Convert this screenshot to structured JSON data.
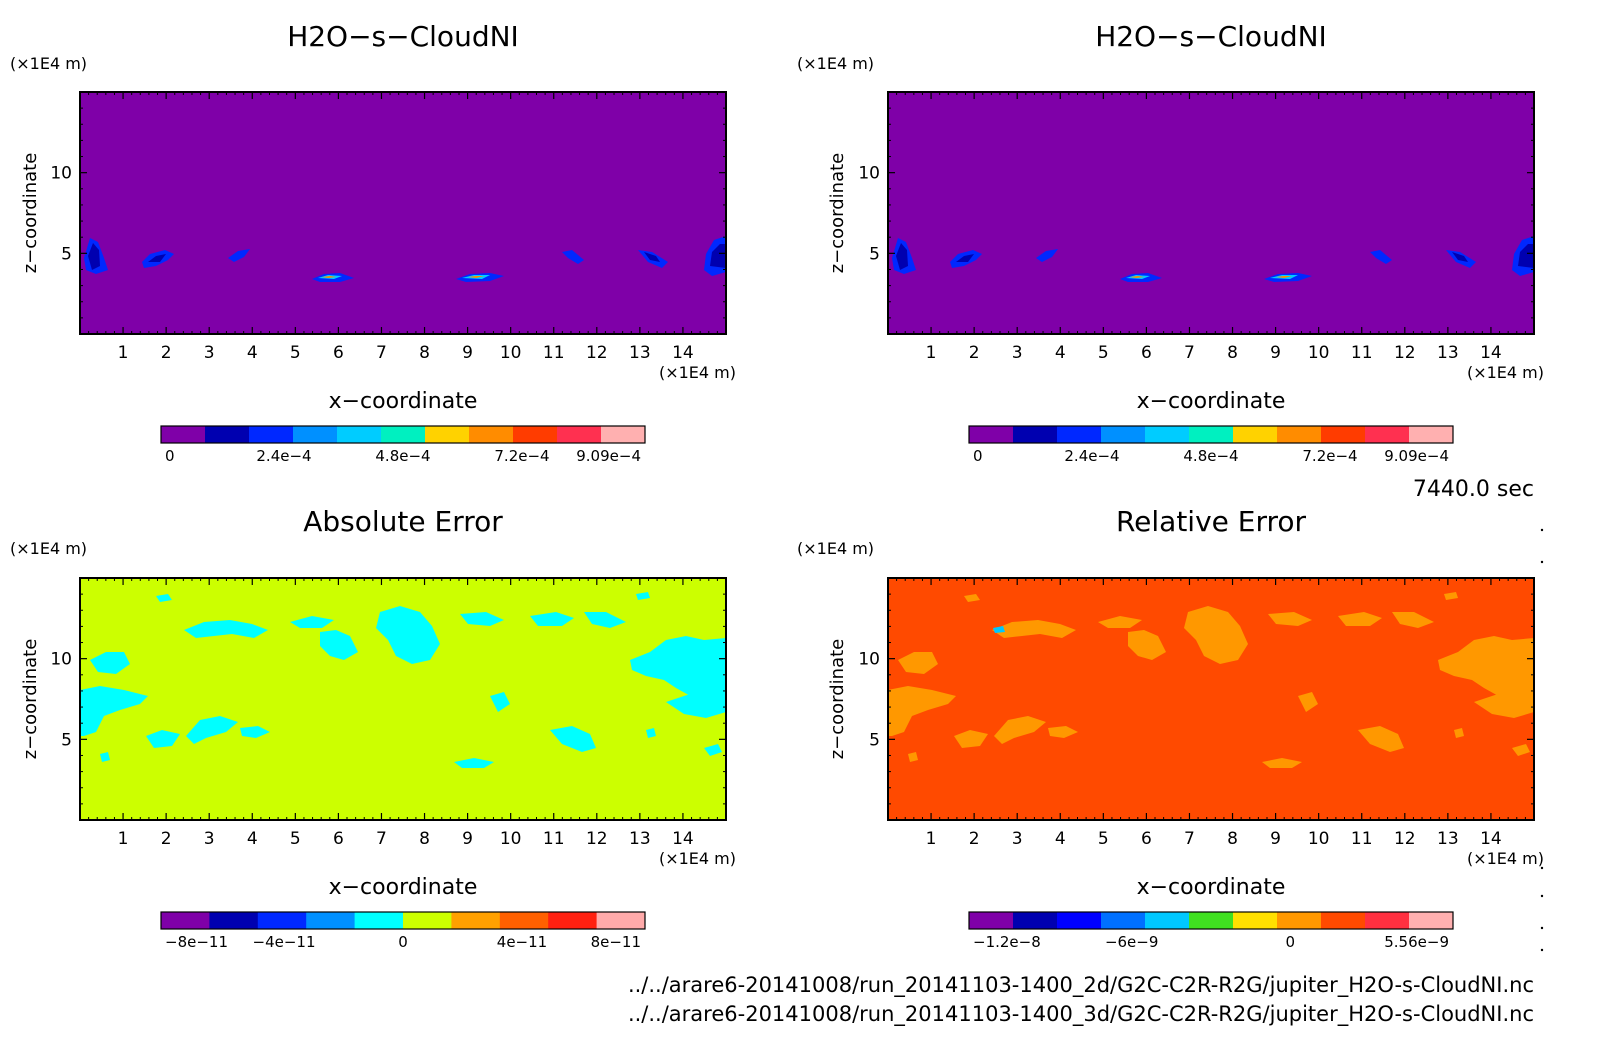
{
  "time_label": "7440.0 sec",
  "files": [
    "../../arare6-20141008/run_20141103-1400_2d/G2C-C2R-R2G/jupiter_H2O-s-CloudNI.nc",
    "../../arare6-20141008/run_20141103-1400_3d/G2C-C2R-R2G/jupiter_H2O-s-CloudNI.nc"
  ],
  "colors": {
    "cloud_bg": "#7f00a8",
    "abs_bg": "#ccff00",
    "abs_patch": "#00ffff",
    "rel_bg": "#ff4a00",
    "rel_patch": "#ff9800"
  },
  "chart_data": [
    {
      "type": "heatmap",
      "title": "H2O−s−CloudNI",
      "xlabel": "x−coordinate",
      "ylabel": "z−coordinate",
      "x_unit": "(×1E4 m)",
      "y_unit": "(×1E4 m)",
      "xticks": [
        "1",
        "2",
        "3",
        "4",
        "5",
        "6",
        "7",
        "8",
        "9",
        "10",
        "11",
        "12",
        "13",
        "14"
      ],
      "yticks": [
        "5",
        "10"
      ],
      "xlim": [
        0,
        15
      ],
      "ylim": [
        0,
        15
      ],
      "colorbar": {
        "labels": [
          "0",
          "2.4e−4",
          "4.8e−4",
          "7.2e−4",
          "9.09e−4"
        ],
        "colors": [
          "#7f00a8",
          "#0000b0",
          "#0028ff",
          "#0090ff",
          "#00ccff",
          "#00f0c0",
          "#ffd200",
          "#ff8c00",
          "#ff3c00",
          "#ff3050",
          "#ffb0b0"
        ]
      }
    },
    {
      "type": "heatmap",
      "title": "H2O−s−CloudNI",
      "xlabel": "x−coordinate",
      "ylabel": "z−coordinate",
      "x_unit": "(×1E4 m)",
      "y_unit": "(×1E4 m)",
      "xticks": [
        "1",
        "2",
        "3",
        "4",
        "5",
        "6",
        "7",
        "8",
        "9",
        "10",
        "11",
        "12",
        "13",
        "14"
      ],
      "yticks": [
        "5",
        "10"
      ],
      "xlim": [
        0,
        15
      ],
      "ylim": [
        0,
        15
      ],
      "colorbar": {
        "labels": [
          "0",
          "2.4e−4",
          "4.8e−4",
          "7.2e−4",
          "9.09e−4"
        ],
        "colors": [
          "#7f00a8",
          "#0000b0",
          "#0028ff",
          "#0090ff",
          "#00ccff",
          "#00f0c0",
          "#ffd200",
          "#ff8c00",
          "#ff3c00",
          "#ff3050",
          "#ffb0b0"
        ]
      }
    },
    {
      "type": "heatmap",
      "title": "Absolute Error",
      "xlabel": "x−coordinate",
      "ylabel": "z−coordinate",
      "x_unit": "(×1E4 m)",
      "y_unit": "(×1E4 m)",
      "xticks": [
        "1",
        "2",
        "3",
        "4",
        "5",
        "6",
        "7",
        "8",
        "9",
        "10",
        "11",
        "12",
        "13",
        "14"
      ],
      "yticks": [
        "5",
        "10"
      ],
      "xlim": [
        0,
        15
      ],
      "ylim": [
        0,
        15
      ],
      "colorbar": {
        "labels": [
          "−8e−11",
          "−4e−11",
          "0",
          "4e−11",
          "8e−11"
        ],
        "colors": [
          "#7f00a8",
          "#0000b0",
          "#0028ff",
          "#0090ff",
          "#00ffff",
          "#ccff00",
          "#ffa000",
          "#ff6000",
          "#ff2010",
          "#ffaaaa"
        ]
      }
    },
    {
      "type": "heatmap",
      "title": "Relative Error",
      "xlabel": "x−coordinate",
      "ylabel": "z−coordinate",
      "x_unit": "(×1E4 m)",
      "y_unit": "(×1E4 m)",
      "xticks": [
        "1",
        "2",
        "3",
        "4",
        "5",
        "6",
        "7",
        "8",
        "9",
        "10",
        "11",
        "12",
        "13",
        "14"
      ],
      "yticks": [
        "5",
        "10"
      ],
      "xlim": [
        0,
        15
      ],
      "ylim": [
        0,
        15
      ],
      "colorbar": {
        "labels": [
          "−1.2e−8",
          "−6e−9",
          "0",
          "5.56e−9"
        ],
        "colors": [
          "#7f00a8",
          "#0000b0",
          "#0000ff",
          "#0070ff",
          "#00c8ff",
          "#40e020",
          "#ffe000",
          "#ff9800",
          "#ff4a00",
          "#ff3040",
          "#ffb0b0"
        ]
      }
    }
  ]
}
